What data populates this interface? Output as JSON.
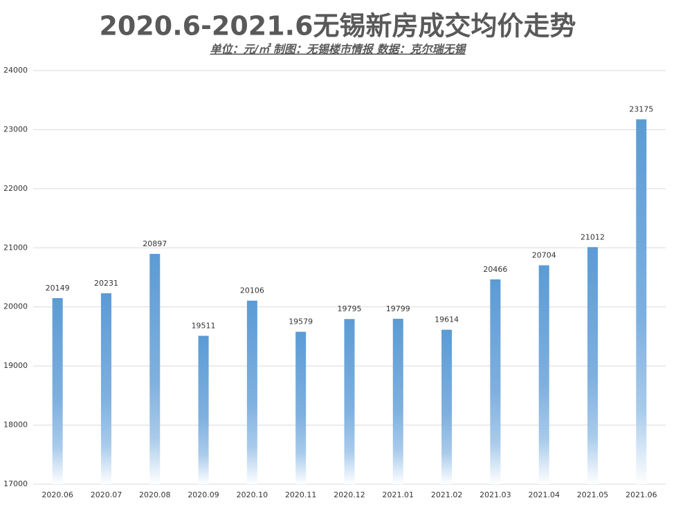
{
  "chart_data": {
    "type": "bar",
    "title": "2020.6-2021.6无锡新房成交均价走势",
    "subtitle": "单位：元/㎡ 制图：无锡楼市情报 数据：克尔瑞无锡",
    "categories": [
      "2020.06",
      "2020.07",
      "2020.08",
      "2020.09",
      "2020.10",
      "2020.11",
      "2020.12",
      "2021.01",
      "2021.02",
      "2021.03",
      "2021.04",
      "2021.05",
      "2021.06"
    ],
    "values": [
      20149,
      20231,
      20897,
      19511,
      20106,
      19579,
      19795,
      19799,
      19614,
      20466,
      20704,
      21012,
      23175
    ],
    "color": "#5b9bd5",
    "ylim": [
      17000,
      24000
    ],
    "yticks": [
      17000,
      18000,
      19000,
      20000,
      21000,
      22000,
      23000,
      24000
    ],
    "grid": true
  }
}
